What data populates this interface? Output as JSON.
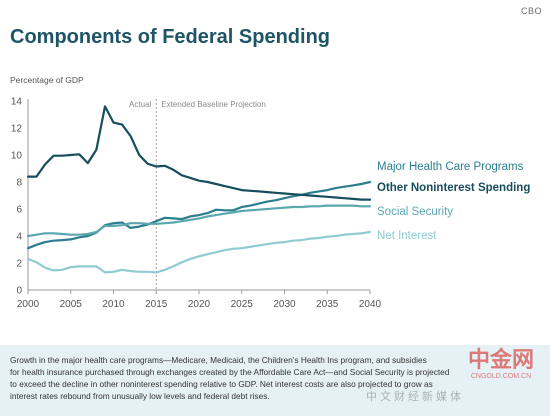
{
  "header": {
    "brand": "CBO",
    "title": "Components of Federal Spending"
  },
  "chart_data": {
    "type": "line",
    "ylabel": "Percentage of GDP",
    "xlim": [
      2000,
      2040
    ],
    "ylim": [
      0,
      14
    ],
    "xticks": [
      "2000",
      "2005",
      "2010",
      "2015",
      "2020",
      "2025",
      "2030",
      "2035",
      "2040"
    ],
    "yticks": [
      "0",
      "2",
      "4",
      "6",
      "8",
      "10",
      "12",
      "14"
    ],
    "annotations": {
      "divider_year": 2015,
      "left_label": "Actual",
      "right_label": "Extended Baseline Projection"
    },
    "projection_start": 2015,
    "grid": false,
    "legend_placement": "right, labels at line ends",
    "series": [
      {
        "name": "Major Health Care Programs",
        "color": "#2b7e8e",
        "x": [
          2000,
          2001,
          2002,
          2003,
          2004,
          2005,
          2006,
          2007,
          2008,
          2009,
          2010,
          2011,
          2012,
          2013,
          2014,
          2015,
          2016,
          2017,
          2018,
          2019,
          2020,
          2021,
          2022,
          2023,
          2024,
          2025,
          2026,
          2027,
          2028,
          2029,
          2030,
          2031,
          2032,
          2033,
          2034,
          2035,
          2036,
          2037,
          2038,
          2039,
          2040
        ],
        "values": [
          3.1,
          3.35,
          3.55,
          3.65,
          3.7,
          3.75,
          3.9,
          4.0,
          4.25,
          4.8,
          4.95,
          5.0,
          4.6,
          4.7,
          4.85,
          5.1,
          5.35,
          5.3,
          5.25,
          5.45,
          5.55,
          5.7,
          5.95,
          5.9,
          5.9,
          6.15,
          6.25,
          6.4,
          6.55,
          6.65,
          6.8,
          6.95,
          7.05,
          7.2,
          7.3,
          7.4,
          7.55,
          7.65,
          7.75,
          7.85,
          8.0
        ]
      },
      {
        "name": "Other Noninterest Spending",
        "color": "#174e5e",
        "x": [
          2000,
          2001,
          2002,
          2003,
          2004,
          2005,
          2006,
          2007,
          2008,
          2009,
          2010,
          2011,
          2012,
          2013,
          2014,
          2015,
          2016,
          2017,
          2018,
          2019,
          2020,
          2021,
          2022,
          2023,
          2024,
          2025,
          2026,
          2027,
          2028,
          2029,
          2030,
          2031,
          2032,
          2033,
          2034,
          2035,
          2036,
          2037,
          2038,
          2039,
          2040
        ],
        "values": [
          8.4,
          8.4,
          9.3,
          9.95,
          9.95,
          10.0,
          10.05,
          9.4,
          10.4,
          13.6,
          12.4,
          12.25,
          11.4,
          10.0,
          9.35,
          9.15,
          9.2,
          8.9,
          8.5,
          8.3,
          8.1,
          8.0,
          7.85,
          7.7,
          7.55,
          7.4,
          7.35,
          7.3,
          7.25,
          7.2,
          7.15,
          7.1,
          7.05,
          7.0,
          6.95,
          6.9,
          6.85,
          6.8,
          6.75,
          6.7,
          6.7
        ]
      },
      {
        "name": "Social Security",
        "color": "#5aa7ad",
        "x": [
          2000,
          2001,
          2002,
          2003,
          2004,
          2005,
          2006,
          2007,
          2008,
          2009,
          2010,
          2011,
          2012,
          2013,
          2014,
          2015,
          2016,
          2017,
          2018,
          2019,
          2020,
          2021,
          2022,
          2023,
          2024,
          2025,
          2026,
          2027,
          2028,
          2029,
          2030,
          2031,
          2032,
          2033,
          2034,
          2035,
          2036,
          2037,
          2038,
          2039,
          2040
        ],
        "values": [
          4.0,
          4.1,
          4.2,
          4.2,
          4.15,
          4.1,
          4.1,
          4.15,
          4.3,
          4.75,
          4.75,
          4.8,
          4.95,
          4.95,
          4.9,
          4.9,
          4.95,
          5.0,
          5.1,
          5.2,
          5.3,
          5.45,
          5.55,
          5.65,
          5.75,
          5.85,
          5.9,
          5.95,
          6.0,
          6.05,
          6.1,
          6.15,
          6.15,
          6.2,
          6.2,
          6.25,
          6.25,
          6.25,
          6.25,
          6.2,
          6.2
        ]
      },
      {
        "name": "Net Interest",
        "color": "#8fcbd0",
        "x": [
          2000,
          2001,
          2002,
          2003,
          2004,
          2005,
          2006,
          2007,
          2008,
          2009,
          2010,
          2011,
          2012,
          2013,
          2014,
          2015,
          2016,
          2017,
          2018,
          2019,
          2020,
          2021,
          2022,
          2023,
          2024,
          2025,
          2026,
          2027,
          2028,
          2029,
          2030,
          2031,
          2032,
          2033,
          2034,
          2035,
          2036,
          2037,
          2038,
          2039,
          2040
        ],
        "values": [
          2.3,
          2.05,
          1.65,
          1.45,
          1.5,
          1.7,
          1.75,
          1.75,
          1.75,
          1.3,
          1.35,
          1.5,
          1.4,
          1.35,
          1.35,
          1.3,
          1.5,
          1.75,
          2.05,
          2.3,
          2.5,
          2.65,
          2.8,
          2.95,
          3.05,
          3.1,
          3.2,
          3.3,
          3.4,
          3.5,
          3.55,
          3.65,
          3.7,
          3.8,
          3.85,
          3.95,
          4.0,
          4.1,
          4.15,
          4.2,
          4.3
        ]
      }
    ]
  },
  "caption": {
    "line1": "Growth in the major health care programs—Medicare, Medicaid, the Children’s Health Ins",
    "line1b": "program, and subsidies",
    "line2": "for health insurance purchased through exchanges created by the Affordable Care Act—and",
    "line2b": "Social Security is projected",
    "line3": "to exceed the decline in other noninterest spending relative to GDP. Net interest costs are also projected to grow as",
    "line4": "interest rates rebound from unusually low levels and federal debt rises."
  },
  "watermark": {
    "logo": "中金网",
    "domain": "CNGOLD.COM.CN",
    "tagline": "中文财经新媒体"
  }
}
